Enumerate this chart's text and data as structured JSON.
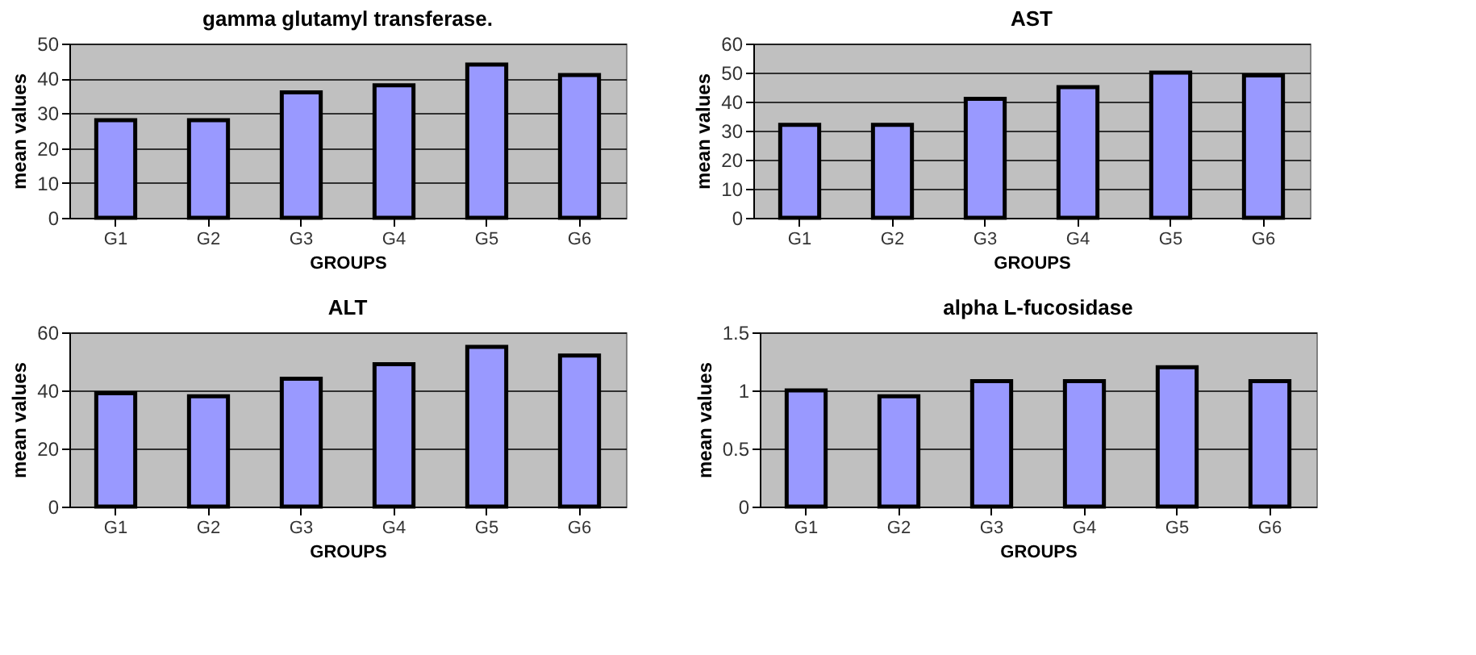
{
  "chart_data": [
    {
      "type": "bar",
      "title": "gamma glutamyl transferase.",
      "xlabel": "GROUPS",
      "ylabel": "mean values",
      "categories": [
        "G1",
        "G2",
        "G3",
        "G4",
        "G5",
        "G6"
      ],
      "values": [
        28,
        28,
        36,
        38,
        44,
        41
      ],
      "color": "#9999ff",
      "ylim": [
        0,
        50
      ],
      "yticks": [
        0,
        10,
        20,
        30,
        40,
        50
      ],
      "grid": "y"
    },
    {
      "type": "bar",
      "title": "AST",
      "xlabel": "GROUPS",
      "ylabel": "mean values",
      "categories": [
        "G1",
        "G2",
        "G3",
        "G4",
        "G5",
        "G6"
      ],
      "values": [
        32,
        32,
        41,
        45,
        50,
        49
      ],
      "color": "#9999ff",
      "ylim": [
        0,
        60
      ],
      "yticks": [
        0,
        10,
        20,
        30,
        40,
        50,
        60
      ],
      "grid": "y"
    },
    {
      "type": "bar",
      "title": "ALT",
      "xlabel": "GROUPS",
      "ylabel": "mean values",
      "categories": [
        "G1",
        "G2",
        "G3",
        "G4",
        "G5",
        "G6"
      ],
      "values": [
        39,
        38,
        44,
        49,
        55,
        52
      ],
      "color": "#9999ff",
      "ylim": [
        0,
        60
      ],
      "yticks": [
        0,
        20,
        40,
        60
      ],
      "grid": "y"
    },
    {
      "type": "bar",
      "title": "alpha L-fucosidase",
      "xlabel": "GROUPS",
      "ylabel": "mean values",
      "categories": [
        "G1",
        "G2",
        "G3",
        "G4",
        "G5",
        "G6"
      ],
      "values": [
        1.0,
        0.95,
        1.08,
        1.08,
        1.2,
        1.08
      ],
      "color": "#9999ff",
      "ylim": [
        0,
        1.5
      ],
      "yticks": [
        0,
        0.5,
        1,
        1.5
      ],
      "grid": "y"
    }
  ]
}
